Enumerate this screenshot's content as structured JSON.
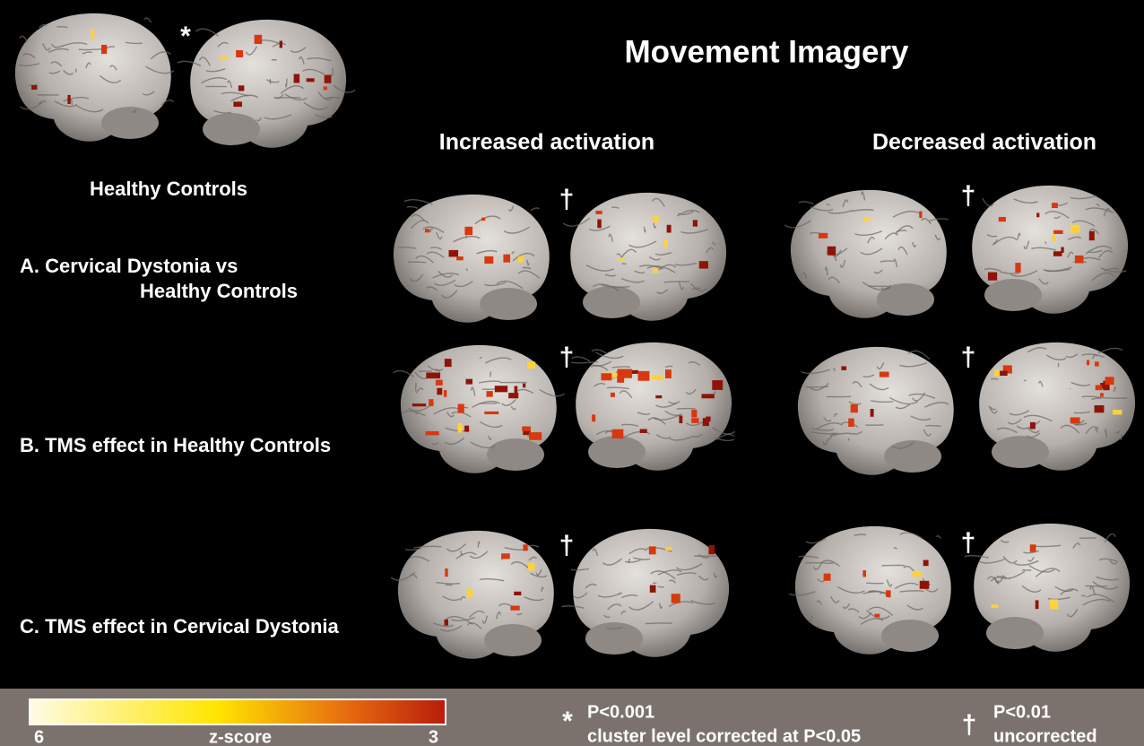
{
  "figure": {
    "title": "Movement Imagery",
    "top_marker": "*",
    "top_label": "Healthy Controls",
    "columns": [
      "Increased activation",
      "Decreased activation"
    ],
    "rows": [
      {
        "label_lines": [
          "A. Cervical Dystonia vs",
          "Healthy Controls"
        ],
        "markers": [
          "†",
          "†"
        ]
      },
      {
        "label_lines": [
          "B. TMS effect in Healthy Controls"
        ],
        "markers": [
          "†",
          "†"
        ]
      },
      {
        "label_lines": [
          "C. TMS effect in Cervical Dystonia"
        ],
        "markers": [
          "†",
          "†"
        ]
      }
    ],
    "colorbar": {
      "left": "6",
      "label": "z-score",
      "right": "3"
    },
    "legend": [
      {
        "symbol": "*",
        "lines": [
          "P<0.001",
          "cluster level corrected at P<0.05"
        ]
      },
      {
        "symbol": "†",
        "lines": [
          "P<0.01",
          "uncorrected"
        ]
      }
    ]
  }
}
